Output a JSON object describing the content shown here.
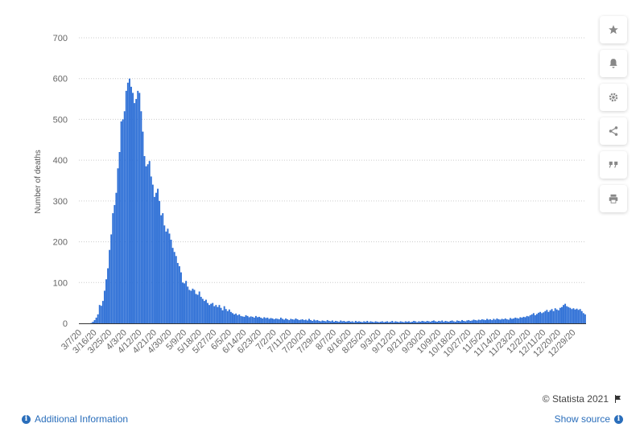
{
  "chart_data": {
    "type": "bar",
    "ylabel": "Number of deaths",
    "ylim": [
      0,
      700
    ],
    "yticks": [
      0,
      100,
      200,
      300,
      400,
      500,
      600,
      700
    ],
    "grid": true,
    "start_date": "3/7/20",
    "xtick_labels": [
      "3/7/20",
      "3/16/20",
      "3/25/20",
      "4/3/20",
      "4/12/20",
      "4/21/20",
      "4/30/20",
      "5/9/20",
      "5/18/20",
      "5/27/20",
      "6/5/20",
      "6/14/20",
      "6/23/20",
      "7/2/20",
      "7/11/20",
      "7/20/20",
      "7/29/20",
      "8/7/20",
      "8/16/20",
      "8/25/20",
      "9/3/20",
      "9/12/20",
      "9/21/20",
      "9/30/20",
      "10/9/20",
      "10/18/20",
      "10/27/20",
      "11/5/20",
      "11/14/20",
      "11/23/20",
      "12/2/20",
      "12/11/20",
      "12/20/20",
      "12/29/20"
    ],
    "series": [
      {
        "name": "",
        "color": "#2d6fd6",
        "values": [
          0,
          0,
          0,
          0,
          0,
          0,
          0,
          1,
          4,
          8,
          14,
          22,
          45,
          43,
          55,
          80,
          108,
          135,
          180,
          218,
          270,
          290,
          320,
          380,
          420,
          495,
          500,
          520,
          570,
          590,
          600,
          580,
          565,
          540,
          550,
          570,
          565,
          520,
          470,
          410,
          385,
          390,
          398,
          360,
          340,
          310,
          320,
          330,
          300,
          265,
          270,
          240,
          225,
          232,
          220,
          205,
          185,
          175,
          165,
          148,
          140,
          125,
          100,
          98,
          104,
          90,
          82,
          80,
          85,
          82,
          72,
          70,
          78,
          65,
          60,
          55,
          58,
          50,
          45,
          48,
          50,
          42,
          45,
          40,
          45,
          38,
          32,
          42,
          35,
          30,
          34,
          28,
          25,
          22,
          24,
          20,
          22,
          18,
          17,
          16,
          20,
          18,
          15,
          17,
          16,
          14,
          18,
          15,
          16,
          14,
          12,
          15,
          13,
          14,
          11,
          13,
          12,
          10,
          12,
          11,
          10,
          14,
          11,
          9,
          12,
          10,
          8,
          11,
          10,
          9,
          12,
          10,
          8,
          9,
          10,
          8,
          9,
          7,
          11,
          8,
          6,
          9,
          7,
          8,
          6,
          5,
          7,
          6,
          5,
          8,
          6,
          5,
          7,
          4,
          6,
          5,
          4,
          7,
          5,
          6,
          4,
          5,
          6,
          4,
          5,
          3,
          6,
          4,
          5,
          4,
          3,
          5,
          4,
          6,
          3,
          5,
          4,
          3,
          5,
          4,
          3,
          4,
          5,
          3,
          4,
          5,
          3,
          4,
          6,
          3,
          5,
          4,
          3,
          5,
          4,
          3,
          5,
          4,
          5,
          3,
          4,
          6,
          5,
          3,
          5,
          4,
          6,
          5,
          4,
          6,
          5,
          4,
          6,
          7,
          5,
          4,
          6,
          5,
          7,
          4,
          6,
          5,
          4,
          6,
          7,
          5,
          4,
          7,
          6,
          5,
          8,
          6,
          5,
          7,
          8,
          6,
          7,
          9,
          8,
          7,
          9,
          8,
          10,
          9,
          8,
          11,
          9,
          10,
          8,
          11,
          9,
          12,
          10,
          9,
          11,
          10,
          12,
          10,
          9,
          13,
          11,
          12,
          14,
          13,
          12,
          15,
          14,
          16,
          15,
          18,
          17,
          20,
          22,
          25,
          20,
          23,
          26,
          28,
          25,
          27,
          30,
          33,
          28,
          32,
          35,
          30,
          37,
          34,
          32,
          38,
          40,
          45,
          48,
          42,
          40,
          38,
          35,
          37,
          34,
          36,
          33,
          35,
          30,
          25,
          22
        ]
      }
    ]
  },
  "toolbar": {
    "icons": [
      "star-icon",
      "bell-icon",
      "gear-icon",
      "share-icon",
      "quote-icon",
      "print-icon"
    ]
  },
  "footer": {
    "credit": "© Statista 2021",
    "additional_info": "Additional Information",
    "show_source": "Show source"
  }
}
